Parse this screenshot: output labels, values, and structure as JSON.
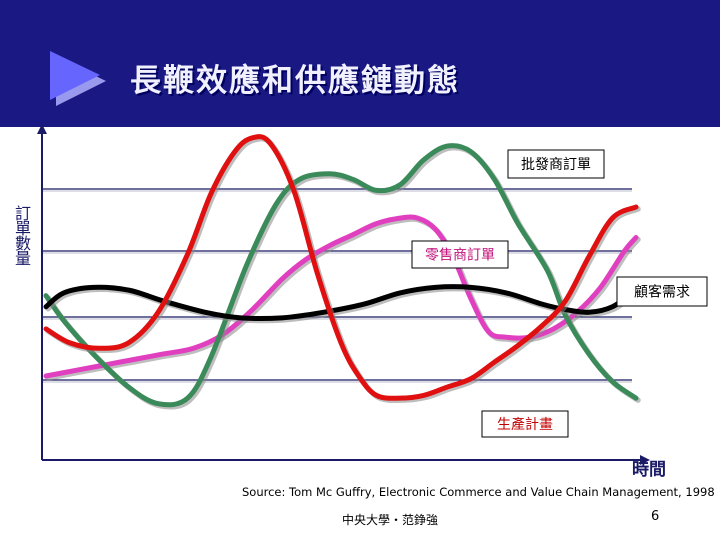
{
  "title": "長鞭效應和供應鏈動態",
  "colors": {
    "header_bg": "#1a1882",
    "arrow": "#6666ff",
    "axis": "#1a1a66",
    "grid": "#1a1a66"
  },
  "chart_data": {
    "type": "line",
    "ylabel": "訂單數量",
    "xlabel": "時間",
    "grid": true,
    "legend": "inline labels",
    "series": [
      {
        "name": "批發商訂單",
        "color": "#3a8a5a",
        "label_color": "#000000",
        "x": [
          0,
          0.03,
          0.08,
          0.14,
          0.19,
          0.24,
          0.28,
          0.34,
          0.39,
          0.43,
          0.48,
          0.52,
          0.56,
          0.6,
          0.64,
          0.68,
          0.72,
          0.76,
          0.8,
          0.85,
          0.88,
          0.92,
          0.96,
          1.0
        ],
        "y": [
          0.42,
          0.33,
          0.21,
          0.09,
          0.03,
          0.05,
          0.2,
          0.53,
          0.75,
          0.84,
          0.86,
          0.84,
          0.8,
          0.82,
          0.91,
          0.96,
          0.94,
          0.84,
          0.68,
          0.51,
          0.35,
          0.21,
          0.11,
          0.05
        ]
      },
      {
        "name": "零售商訂單",
        "color": "#e040c0",
        "label_color": "#c0107a",
        "x": [
          0,
          0.05,
          0.1,
          0.15,
          0.2,
          0.25,
          0.3,
          0.35,
          0.4,
          0.44,
          0.48,
          0.52,
          0.56,
          0.6,
          0.63,
          0.66,
          0.69,
          0.72,
          0.75,
          0.78,
          0.82,
          0.86,
          0.9,
          0.94,
          0.98,
          1.0
        ],
        "y": [
          0.13,
          0.15,
          0.17,
          0.19,
          0.21,
          0.23,
          0.28,
          0.37,
          0.48,
          0.55,
          0.6,
          0.64,
          0.68,
          0.7,
          0.7,
          0.66,
          0.56,
          0.41,
          0.29,
          0.27,
          0.27,
          0.3,
          0.36,
          0.45,
          0.58,
          0.63
        ]
      },
      {
        "name": "顧客需求",
        "color": "#000000",
        "label_color": "#000000",
        "x": [
          0,
          0.03,
          0.08,
          0.14,
          0.2,
          0.27,
          0.33,
          0.4,
          0.47,
          0.54,
          0.6,
          0.66,
          0.72,
          0.78,
          0.84,
          0.88,
          0.92,
          0.96,
          1.0
        ],
        "y": [
          0.38,
          0.43,
          0.45,
          0.44,
          0.4,
          0.36,
          0.34,
          0.34,
          0.36,
          0.39,
          0.43,
          0.45,
          0.45,
          0.43,
          0.39,
          0.37,
          0.36,
          0.38,
          0.44
        ]
      },
      {
        "name": "生產計畫",
        "color": "#e01010",
        "label_color": "#c00000",
        "x": [
          0,
          0.04,
          0.09,
          0.14,
          0.19,
          0.24,
          0.28,
          0.32,
          0.35,
          0.38,
          0.42,
          0.46,
          0.5,
          0.53,
          0.56,
          0.6,
          0.64,
          0.68,
          0.72,
          0.76,
          0.8,
          0.84,
          0.88,
          0.92,
          0.96,
          1.0
        ],
        "y": [
          0.3,
          0.25,
          0.23,
          0.25,
          0.36,
          0.57,
          0.79,
          0.94,
          0.99,
          0.97,
          0.8,
          0.5,
          0.25,
          0.13,
          0.06,
          0.05,
          0.06,
          0.09,
          0.12,
          0.18,
          0.24,
          0.31,
          0.4,
          0.56,
          0.7,
          0.74
        ]
      }
    ],
    "labels": [
      "批發商訂單",
      "零售商訂單",
      "顧客需求",
      "生產計畫"
    ]
  },
  "source": "Source: Tom Mc Guffry, Electronic Commerce and Value Chain Management, 1998",
  "footer": "中央大學・范錚強",
  "page_number": "6"
}
